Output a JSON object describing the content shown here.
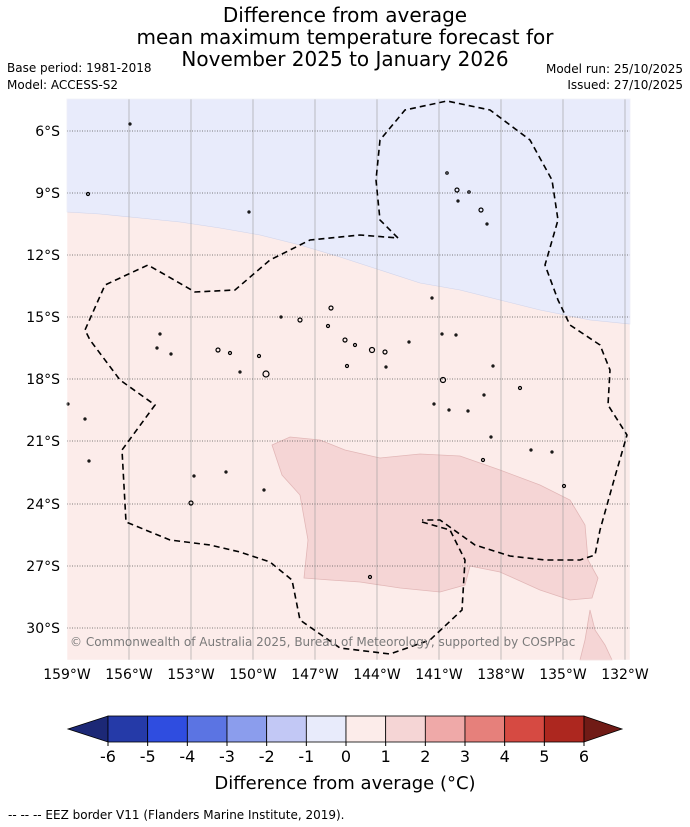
{
  "title": {
    "line1": "Difference from average",
    "line2": "mean maximum temperature forecast for",
    "line3": "November 2025 to January 2026"
  },
  "meta": {
    "base_period": "Base period: 1981-2018",
    "model": "Model: ACCESS-S2",
    "model_run": "Model run: 25/10/2025",
    "issued": "Issued: 27/10/2025"
  },
  "map": {
    "lat_labels": [
      "6°S",
      "9°S",
      "12°S",
      "15°S",
      "18°S",
      "21°S",
      "24°S",
      "27°S",
      "30°S"
    ],
    "lon_labels": [
      "159°W",
      "156°W",
      "153°W",
      "150°W",
      "147°W",
      "144°W",
      "141°W",
      "138°W",
      "135°W",
      "132°W"
    ],
    "copyright": "© Commonwealth of Australia 2025, Bureau of Meteorology, supported by COSPPac",
    "colors": {
      "below_0_to_-1": "#e8ebfb",
      "0_to_1": "#fcecea",
      "1_to_2": "#f5d5d5"
    }
  },
  "colorbar": {
    "ticks": [
      "-6",
      "-5",
      "-4",
      "-3",
      "-2",
      "-1",
      "0",
      "1",
      "2",
      "3",
      "4",
      "5",
      "6"
    ],
    "colors": [
      "#253aa8",
      "#2f4de0",
      "#5b74e3",
      "#8b9ded",
      "#c2c8f5",
      "#e8ebfb",
      "#fcecea",
      "#f5d5d5",
      "#efa9a8",
      "#e6807b",
      "#d64a42",
      "#ad271f"
    ],
    "extend_low": "#1c2876",
    "extend_high": "#701b16",
    "title": "Difference from average (°C)"
  },
  "footer": "-- -- -- EEZ border V11 (Flanders Marine Institute, 2019)."
}
